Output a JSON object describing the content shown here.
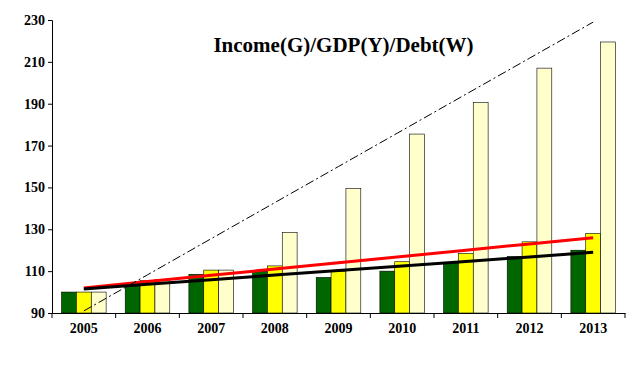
{
  "chart_data": {
    "type": "bar",
    "title": "Income(G)/GDP(Y)/Debt(W)",
    "categories": [
      "2005",
      "2006",
      "2007",
      "2008",
      "2009",
      "2010",
      "2011",
      "2012",
      "2013"
    ],
    "ylim": [
      90,
      230
    ],
    "yticks": [
      90,
      110,
      130,
      150,
      170,
      190,
      210,
      230
    ],
    "grid": false,
    "series": [
      {
        "color": "#006600",
        "values": [
          100,
          103,
          108.5,
          110,
          107,
          110,
          114,
          117,
          120
        ]
      },
      {
        "color": "#ffff00",
        "values": [
          100,
          105.5,
          110.5,
          112.5,
          110,
          114.5,
          118.5,
          124,
          128
        ]
      },
      {
        "color": "#ffffcc",
        "values": [
          100,
          106,
          110.5,
          128.5,
          149.5,
          175.5,
          190.5,
          207,
          219.5
        ]
      },
      {
        "type": "line",
        "color": "#ff0000",
        "line_style": "solid",
        "values": [
          102,
          105,
          108,
          111,
          114,
          117,
          120,
          123,
          126
        ]
      },
      {
        "type": "line",
        "color": "#000000",
        "line_style": "solid",
        "values": [
          101.5,
          103.7,
          105.9,
          108.1,
          110.3,
          112.5,
          114.6,
          116.8,
          119
        ]
      },
      {
        "type": "line",
        "color": "#000000",
        "line_style": "dashdot",
        "values": [
          91,
          108.25,
          125.5,
          142.75,
          160,
          177.25,
          194.5,
          211.75,
          229
        ]
      }
    ]
  }
}
